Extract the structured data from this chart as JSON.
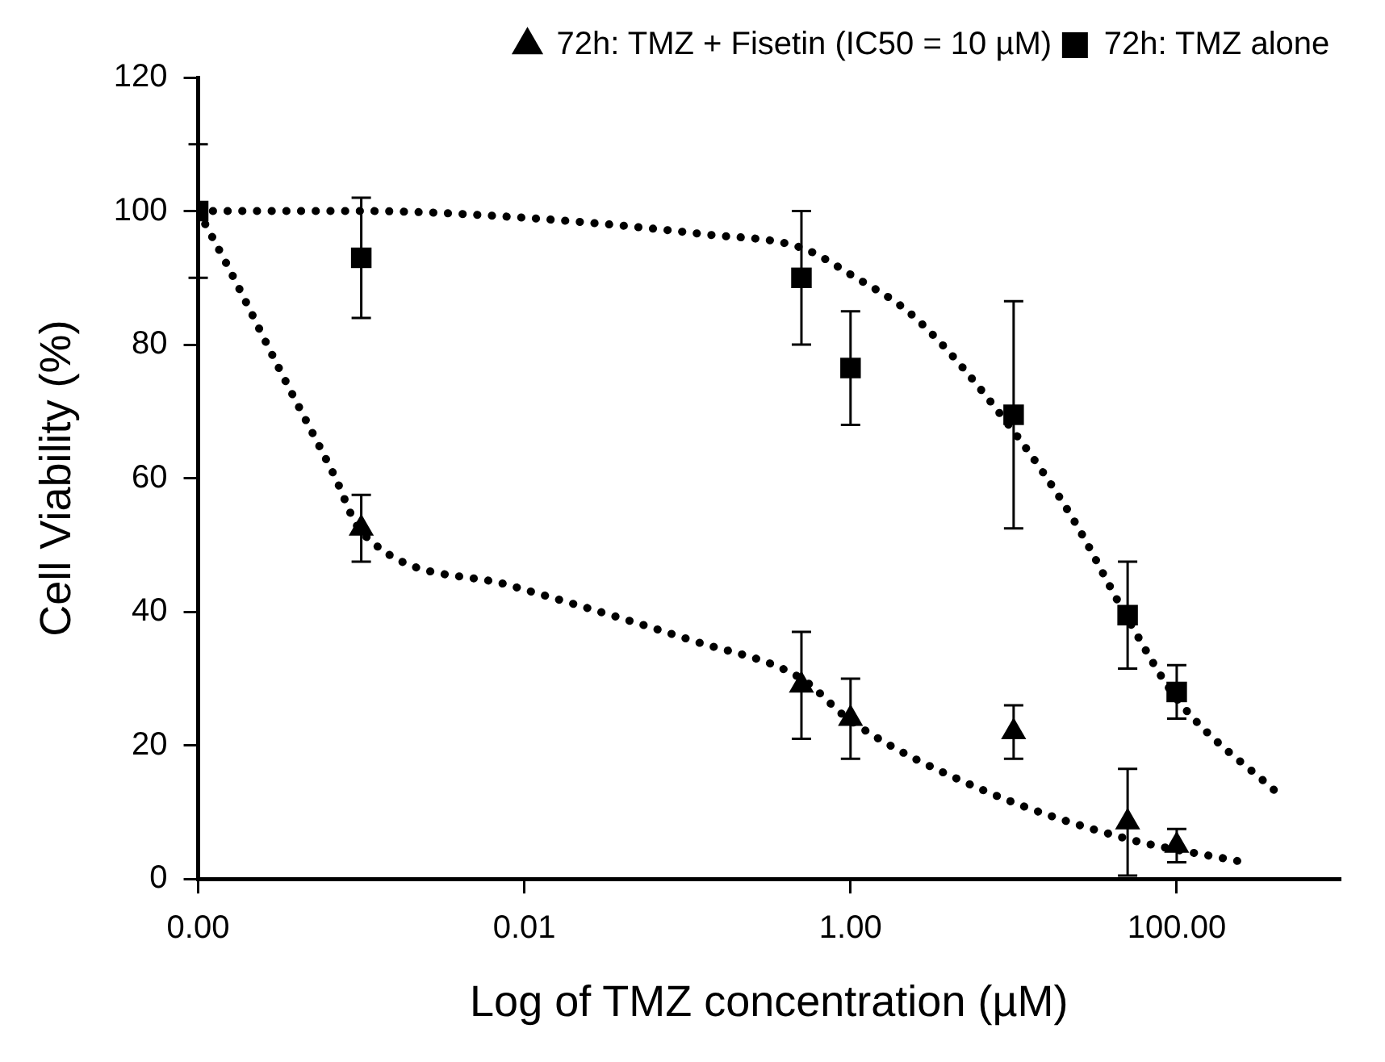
{
  "chart_data": {
    "type": "scatter",
    "xlabel": "Log of TMZ concentration (µM)",
    "ylabel": "Cell Viability (%)",
    "x": [
      0.0001,
      0.001,
      0.5,
      1,
      10,
      50,
      100
    ],
    "series": [
      {
        "name": "72h: TMZ + Fisetin (IC50 = 10 µM)",
        "color": "#000000",
        "marker": "triangle",
        "values": [
          null,
          52.5,
          29,
          24,
          22,
          8.5,
          5
        ],
        "errors": [
          null,
          5,
          8,
          6,
          4,
          8,
          2.5
        ]
      },
      {
        "name": "72h: TMZ alone",
        "color": "#000000",
        "marker": "square",
        "values": [
          100,
          93,
          90,
          76.5,
          69.5,
          39.5,
          28
        ],
        "errors": [
          10,
          9,
          10,
          8.5,
          17,
          8,
          4
        ]
      },
      {
        "type": "line",
        "color": "#000000",
        "marker": "none",
        "line_style": "dotted",
        "x": [
          0.0001,
          0.001,
          0.01,
          0.13,
          0.5,
          1,
          2.5,
          10,
          23,
          50,
          100,
          430
        ],
        "values": [
          100,
          100,
          99,
          96.5,
          94.5,
          90.5,
          84,
          67,
          54,
          39,
          27,
          12.5
        ]
      },
      {
        "type": "line",
        "color": "#000000",
        "marker": "none",
        "line_style": "dotted",
        "x": [
          0.0001,
          0.00015,
          0.00032,
          0.00068,
          0.001,
          0.008,
          0.107,
          0.5,
          1,
          6.5,
          50,
          235
        ],
        "values": [
          100,
          92,
          76,
          60.5,
          52,
          44,
          35.7,
          30,
          23.7,
          13.3,
          6,
          2.7
        ]
      }
    ],
    "log": "x",
    "xlim": [
      0.0001,
      1000
    ],
    "xticks": [
      {
        "value": 0.0001,
        "label": "0.00"
      },
      {
        "value": 0.01,
        "label": "0.01"
      },
      {
        "value": 1,
        "label": "1.00"
      },
      {
        "value": 100,
        "label": "100.00"
      }
    ],
    "ylim": [
      0,
      120
    ],
    "yticks": [
      0,
      20,
      40,
      60,
      80,
      100,
      120
    ],
    "grid": false,
    "legend": "top right"
  }
}
